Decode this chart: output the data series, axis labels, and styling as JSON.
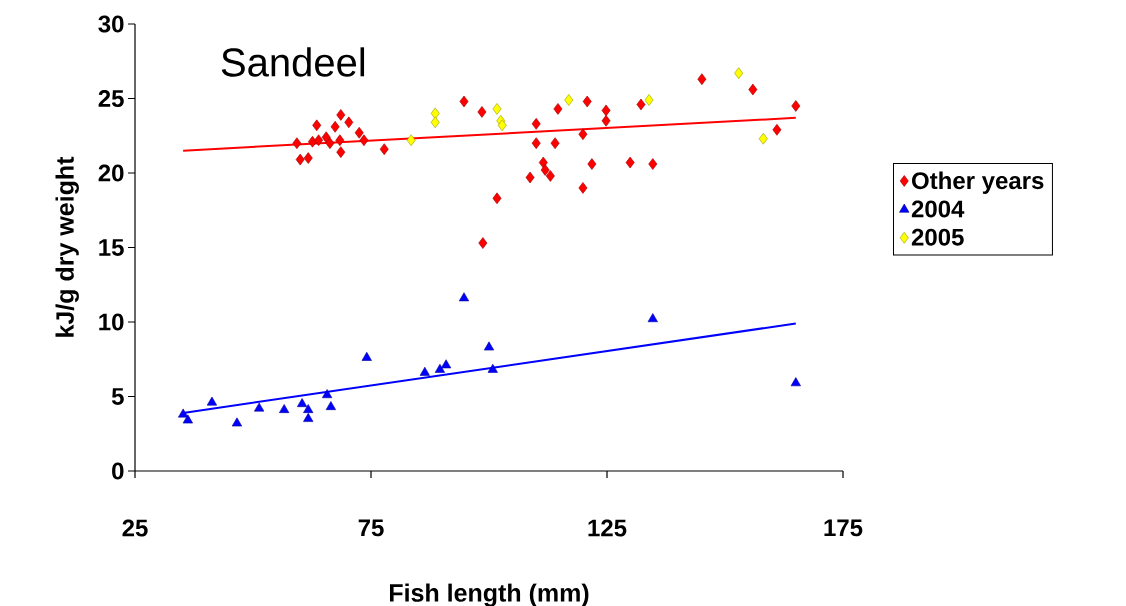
{
  "chart_data": {
    "type": "scatter",
    "title": "Sandeel",
    "xlabel": "Fish length (mm)",
    "ylabel": "kJ/g dry weight",
    "xlim": [
      25,
      175
    ],
    "xticks": [
      25,
      75,
      125,
      175
    ],
    "ylim": [
      0,
      30
    ],
    "yticks": [
      0,
      5,
      10,
      15,
      20,
      25,
      30
    ],
    "grid": false,
    "legend": "right",
    "series": [
      {
        "name": "Other years",
        "color": "#ff0000",
        "marker": "diamond",
        "x": [
          59.3,
          60.0,
          61.7,
          62.6,
          63.5,
          63.9,
          65.5,
          66.3,
          67.4,
          68.6,
          68.4,
          68.6,
          70.3,
          72.5,
          73.5,
          77.8,
          94.7,
          98.5,
          98.7,
          101.7,
          108.7,
          110.0,
          110.0,
          111.5,
          111.9,
          113.0,
          114.0,
          114.6,
          119.9,
          119.9,
          120.8,
          121.8,
          124.8,
          124.8,
          129.9,
          132.2,
          134.7,
          145.1,
          155.9,
          161.0,
          165.0
        ],
        "values": [
          22.0,
          20.9,
          21.0,
          22.1,
          23.2,
          22.2,
          22.4,
          22.0,
          23.1,
          23.9,
          22.2,
          21.4,
          23.4,
          22.7,
          22.2,
          21.6,
          24.8,
          24.1,
          15.3,
          18.3,
          19.7,
          22.0,
          23.3,
          20.7,
          20.2,
          19.8,
          22.0,
          24.3,
          19.0,
          22.6,
          24.8,
          20.6,
          23.5,
          24.2,
          20.7,
          24.6,
          20.6,
          26.3,
          25.6,
          22.9,
          24.5
        ]
      },
      {
        "name": "2004",
        "color": "#0000ff",
        "marker": "triangle",
        "x": [
          35.2,
          36.2,
          41.3,
          46.6,
          51.3,
          56.6,
          60.4,
          61.7,
          61.7,
          65.7,
          66.5,
          74.1,
          86.4,
          89.6,
          90.9,
          94.7,
          100.0,
          100.8,
          134.7,
          165.0
        ],
        "values": [
          3.8,
          3.4,
          4.6,
          3.2,
          4.2,
          4.1,
          4.5,
          4.1,
          3.5,
          5.1,
          4.3,
          7.6,
          6.6,
          6.8,
          7.1,
          11.6,
          8.3,
          6.8,
          10.2,
          5.9
        ]
      },
      {
        "name": "2005",
        "color": "#ffff00",
        "marker": "diamond",
        "x": [
          83.5,
          88.6,
          88.6,
          101.7,
          102.5,
          102.8,
          116.9,
          133.9,
          152.9,
          158.1
        ],
        "values": [
          22.2,
          24.0,
          23.4,
          24.3,
          23.5,
          23.2,
          24.9,
          24.9,
          26.7,
          22.3
        ]
      },
      {
        "type": "line",
        "color": "#ff0000",
        "marker": "none",
        "x": [
          35.2,
          165.0
        ],
        "values": [
          21.5,
          23.7
        ]
      },
      {
        "type": "line",
        "color": "#0000ff",
        "marker": "none",
        "x": [
          35.2,
          165.0
        ],
        "values": [
          3.9,
          9.9
        ]
      }
    ]
  }
}
